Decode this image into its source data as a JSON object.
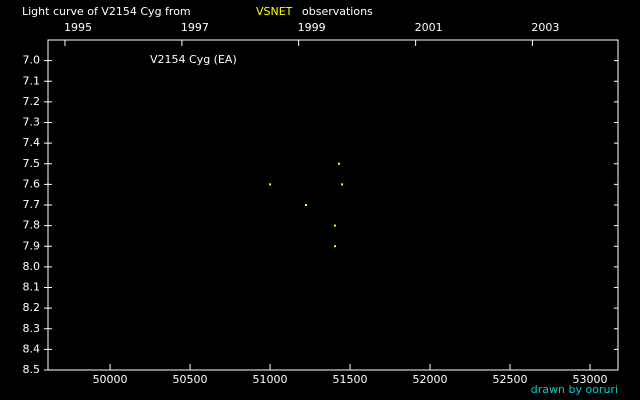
{
  "chart_data": {
    "type": "scatter",
    "title": "Light curve of V2154 Cyg from",
    "title_source": "VSNET",
    "title_suffix": "observations",
    "title_source_color": "#ffff00",
    "annotation": "V2154 Cyg (EA)",
    "credit": "drawn by ooruri",
    "credit_color": "#00d0d0",
    "xlim": [
      49612,
      53175
    ],
    "xticks": [
      50000,
      50500,
      51000,
      51500,
      52000,
      52500,
      53000
    ],
    "x2ticks": [
      {
        "value": 49718,
        "label": "1995"
      },
      {
        "value": 50449,
        "label": "1997"
      },
      {
        "value": 51179,
        "label": "1999"
      },
      {
        "value": 51910,
        "label": "2001"
      },
      {
        "value": 52640,
        "label": "2003"
      }
    ],
    "ylim": [
      8.5,
      6.9
    ],
    "yticks": [
      {
        "value": 7.0,
        "label": "7.0"
      },
      7.1,
      7.2,
      7.3,
      7.4,
      7.5,
      7.6,
      7.7,
      7.8,
      7.9,
      {
        "value": 8.0,
        "label": "8.0"
      },
      8.1,
      8.2,
      8.3,
      8.4,
      8.5
    ],
    "series": [
      {
        "name": "V2154 Cyg",
        "color": "#ffff00",
        "x": [
          51000,
          51225,
          51406,
          51406,
          51431,
          51450
        ],
        "values": [
          7.6,
          7.7,
          7.8,
          7.9,
          7.5,
          7.6
        ]
      }
    ]
  }
}
